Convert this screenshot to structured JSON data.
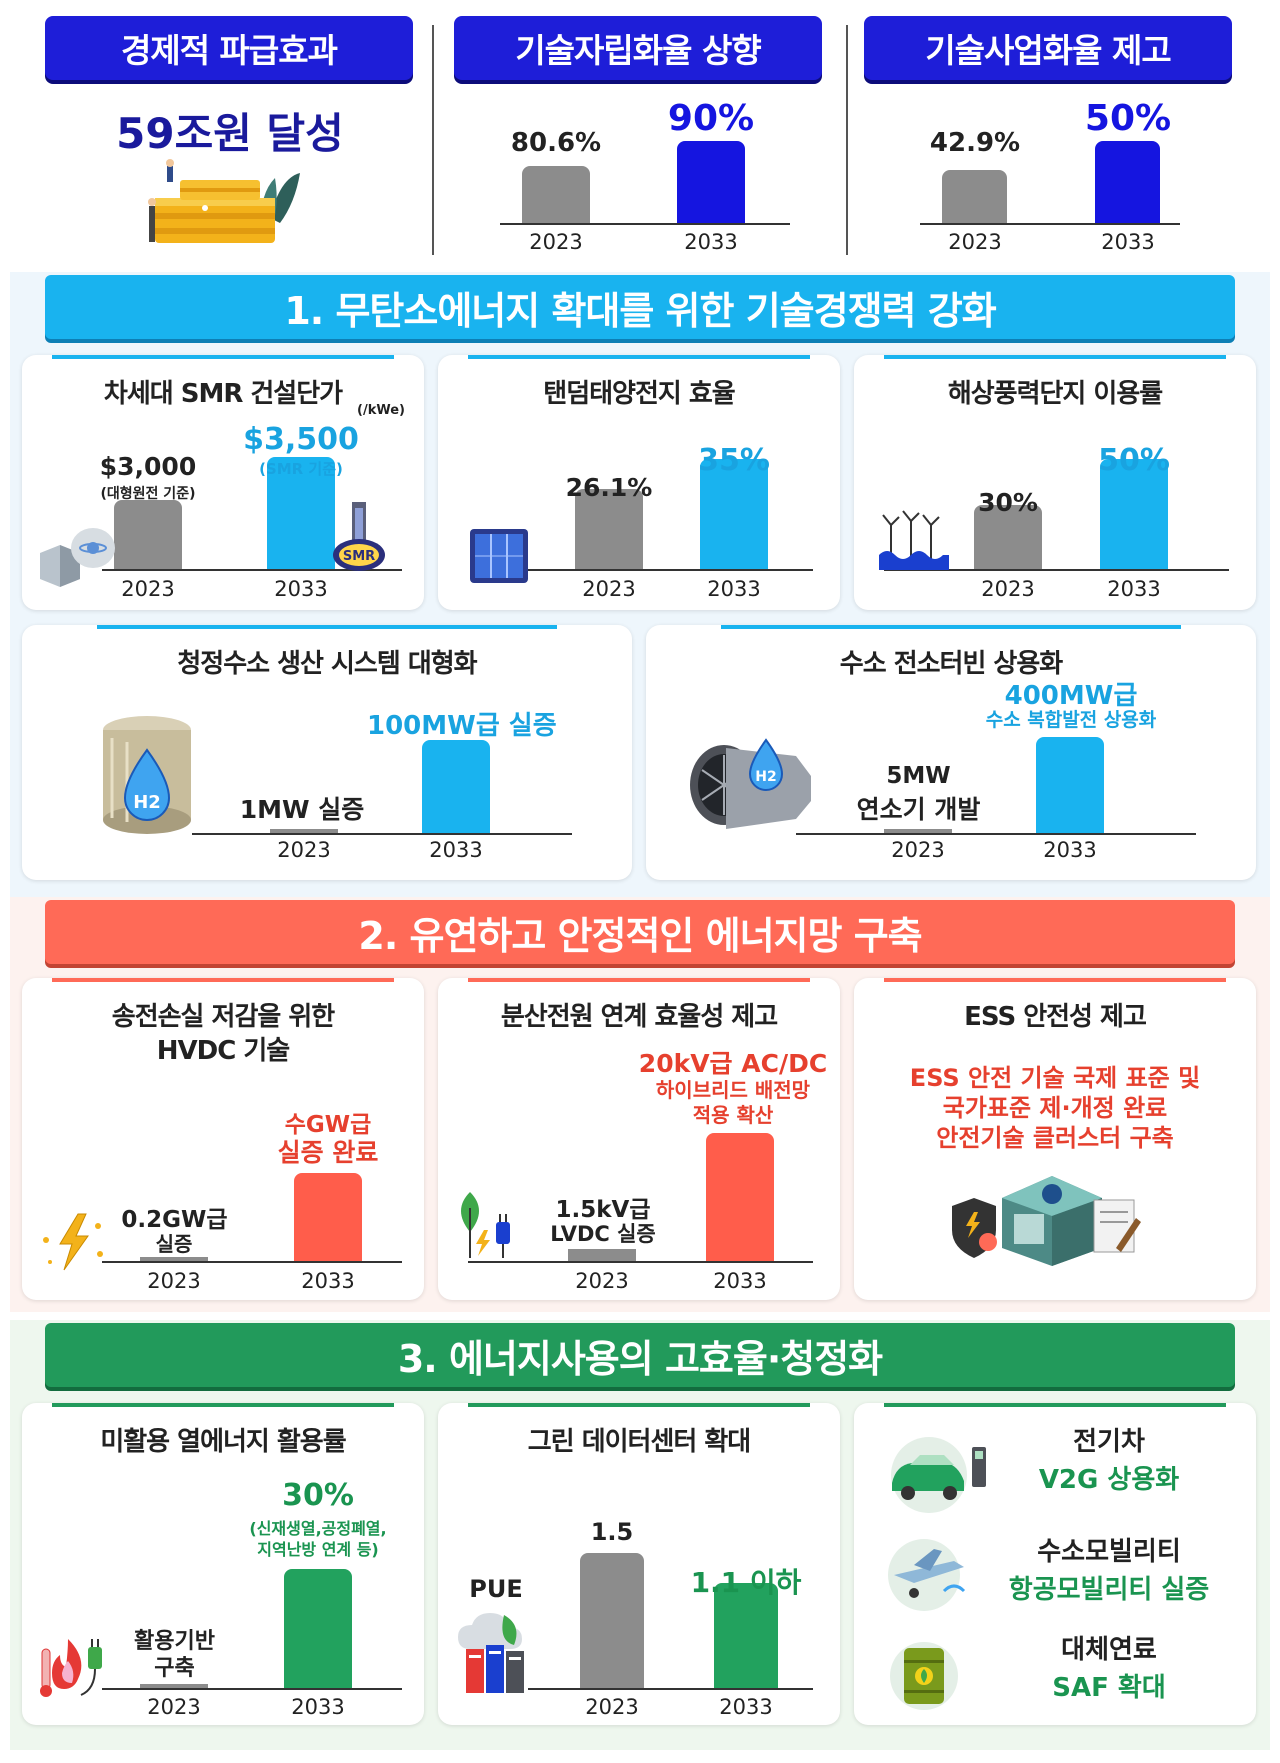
{
  "top": {
    "economic": {
      "title": "경제적 파급효과",
      "value": "59조원 달성"
    },
    "tech_independence": {
      "title": "기술자립화율 상향",
      "v2023": "80.6%",
      "v2033": "90%",
      "y1": "2023",
      "y2": "2033"
    },
    "commercialization": {
      "title": "기술사업화율 제고",
      "v2023": "42.9%",
      "v2033": "50%",
      "y1": "2023",
      "y2": "2033"
    }
  },
  "section1": {
    "banner": "1. 무탄소에너지 확대를 위한 기술경쟁력 강화",
    "smr": {
      "title": "차세대 SMR 건설단가",
      "unit": "(/kWe)",
      "v2023": "$3,000",
      "v2023_note": "(대형원전 기준)",
      "v2033": "$3,500",
      "v2033_note": "(SMR 기준)",
      "badge": "SMR",
      "y1": "2023",
      "y2": "2033"
    },
    "tandem": {
      "title": "탠덤태양전지 효율",
      "v2023": "26.1%",
      "v2033": "35%",
      "y1": "2023",
      "y2": "2033"
    },
    "offshore": {
      "title": "해상풍력단지 이용률",
      "v2023": "30%",
      "v2033": "50%",
      "y1": "2023",
      "y2": "2033"
    },
    "hydrogen": {
      "title": "청정수소 생산 시스템 대형화",
      "v2023": "1MW 실증",
      "v2033": "100MW급 실증",
      "badge": "H2",
      "y1": "2023",
      "y2": "2033"
    },
    "turbine": {
      "title": "수소 전소터빈 상용화",
      "v2023_line1": "5MW",
      "v2023_line2": "연소기 개발",
      "v2033_line1": "400MW급",
      "v2033_line2": "수소 복합발전 상용화",
      "badge": "H2",
      "y1": "2023",
      "y2": "2033"
    }
  },
  "section2": {
    "banner": "2. 유연하고 안정적인 에너지망 구축",
    "hvdc": {
      "title_line1": "송전손실 저감을 위한",
      "title_line2": "HVDC 기술",
      "v2023_line1": "0.2GW급",
      "v2023_line2": "실증",
      "v2033_line1": "수GW급",
      "v2033_line2": "실증 완료",
      "y1": "2023",
      "y2": "2033"
    },
    "distributed": {
      "title": "분산전원 연계 효율성 제고",
      "v2023_line1": "1.5kV급",
      "v2023_line2": "LVDC 실증",
      "v2033_line1": "20kV급 AC/DC",
      "v2033_line2": "하이브리드 배전망",
      "v2033_line3": "적용 확산",
      "y1": "2023",
      "y2": "2033"
    },
    "ess": {
      "title": "ESS 안전성 제고",
      "line1": "ESS 안전 기술 국제 표준 및",
      "line2": "국가표준 제·개정 완료",
      "line3": "안전기술 클러스터 구축"
    }
  },
  "section3": {
    "banner": "3. 에너지사용의 고효율·청정화",
    "heat": {
      "title": "미활용 열에너지 활용률",
      "v2023_line1": "활용기반",
      "v2023_line2": "구축",
      "v2033": "30%",
      "v2033_note1": "(신재생열,공정폐열,",
      "v2033_note2": "지역난방 연계 등)",
      "y1": "2023",
      "y2": "2033"
    },
    "datacenter": {
      "title": "그린 데이터센터 확대",
      "label": "PUE",
      "v2023": "1.5",
      "v2033": "1.1 이하",
      "y1": "2023",
      "y2": "2033"
    },
    "mobility": {
      "ev_title": "전기차",
      "ev_value": "V2G 상용화",
      "h2_title": "수소모빌리티",
      "h2_value": "항공모빌리티 실증",
      "fuel_title": "대체연료",
      "fuel_value": "SAF 확대"
    }
  },
  "chart_data": [
    {
      "type": "bar",
      "title": "기술자립화율 상향",
      "categories": [
        "2023",
        "2033"
      ],
      "values": [
        80.6,
        90
      ],
      "unit": "%"
    },
    {
      "type": "bar",
      "title": "기술사업화율 제고",
      "categories": [
        "2023",
        "2033"
      ],
      "values": [
        42.9,
        50
      ],
      "unit": "%"
    },
    {
      "type": "bar",
      "title": "차세대 SMR 건설단가",
      "categories": [
        "2023",
        "2033"
      ],
      "values": [
        3000,
        3500
      ],
      "unit": "$/kWe"
    },
    {
      "type": "bar",
      "title": "탠덤태양전지 효율",
      "categories": [
        "2023",
        "2033"
      ],
      "values": [
        26.1,
        35
      ],
      "unit": "%"
    },
    {
      "type": "bar",
      "title": "해상풍력단지 이용률",
      "categories": [
        "2023",
        "2033"
      ],
      "values": [
        30,
        50
      ],
      "unit": "%"
    },
    {
      "type": "bar",
      "title": "그린 데이터센터 확대",
      "categories": [
        "2023",
        "2033"
      ],
      "values": [
        1.5,
        1.1
      ],
      "ylabel": "PUE"
    }
  ],
  "colors": {
    "navy": "#1e1ed8",
    "cyan": "#19b3ef",
    "red": "#ff6a57",
    "green": "#229a5b",
    "grey": "#8c8c8c"
  }
}
